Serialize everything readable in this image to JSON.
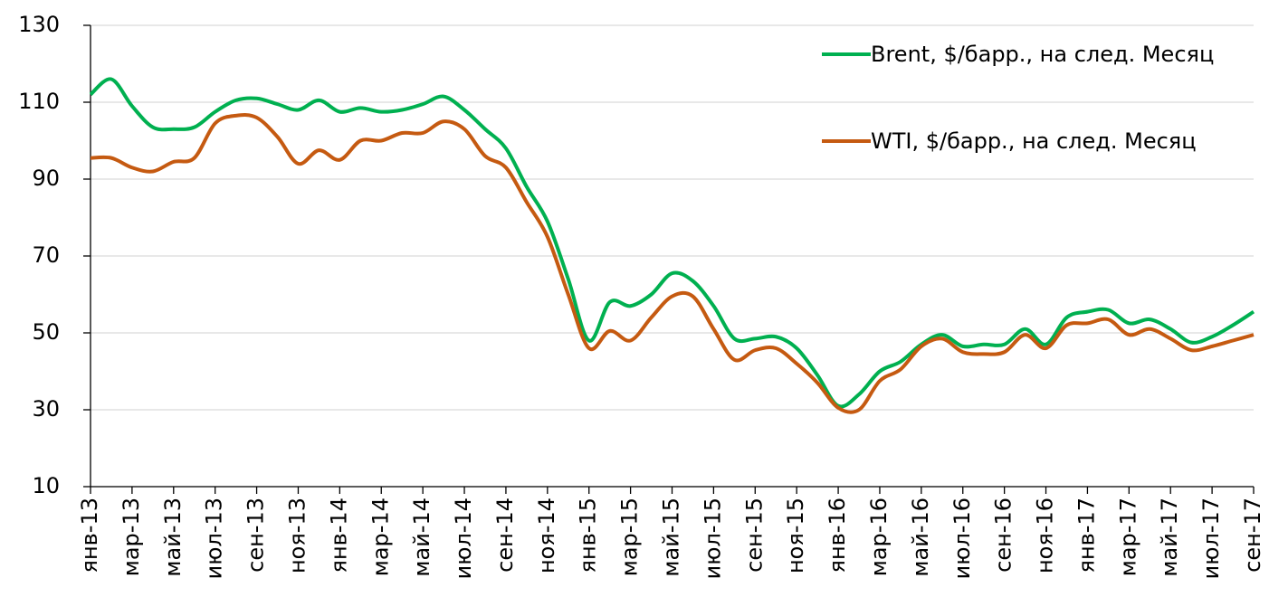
{
  "chart_data": {
    "type": "line",
    "categories": [
      "янв-13",
      null,
      "мар-13",
      null,
      "май-13",
      null,
      "июл-13",
      null,
      "сен-13",
      null,
      "ноя-13",
      null,
      "янв-14",
      null,
      "мар-14",
      null,
      "май-14",
      null,
      "июл-14",
      null,
      "сен-14",
      null,
      "ноя-14",
      null,
      "янв-15",
      null,
      "мар-15",
      null,
      "май-15",
      null,
      "июл-15",
      null,
      "сен-15",
      null,
      "ноя-15",
      null,
      "янв-16",
      null,
      "мар-16",
      null,
      "май-16",
      null,
      "июл-16",
      null,
      "сен-16",
      null,
      "ноя-16",
      null,
      "янв-17",
      null,
      "мар-17",
      null,
      "май-17",
      null,
      "июл-17",
      null,
      "сен-17"
    ],
    "series": [
      {
        "name": "Brent, $/барр., на след. Месяц",
        "color": "#00b050",
        "values": [
          112,
          116,
          109,
          103.5,
          103,
          103.5,
          107.5,
          110.5,
          111,
          109.5,
          108,
          110.5,
          107.5,
          108.5,
          107.5,
          108,
          109.5,
          111.5,
          108,
          103,
          98,
          88,
          79,
          64,
          48,
          58,
          57,
          60,
          65.5,
          63.5,
          57,
          48.5,
          48.5,
          49,
          46,
          39,
          31,
          34,
          40,
          42.5,
          47,
          49.5,
          46.5,
          47,
          47,
          51,
          47,
          54,
          55.5,
          56,
          52.5,
          53.5,
          51,
          47.5,
          49,
          52,
          55.5
        ]
      },
      {
        "name": "WTI, $/барр., на след. Месяц",
        "color": "#c55a11",
        "values": [
          95.5,
          95.5,
          93,
          92,
          94.5,
          95.5,
          104.5,
          106.5,
          106,
          101,
          94,
          97.5,
          95,
          100,
          100,
          102,
          102,
          105,
          103,
          96,
          93,
          84,
          75,
          60,
          46,
          50.5,
          48,
          54,
          59.5,
          59.5,
          51,
          43,
          45.5,
          46,
          42,
          37,
          30.5,
          30,
          37.5,
          40.5,
          46.5,
          48.5,
          45,
          44.5,
          45,
          49.5,
          46,
          52,
          52.5,
          53.5,
          49.5,
          51,
          48.5,
          45.5,
          46.5,
          48,
          49.5
        ]
      }
    ],
    "ylim": [
      10,
      130
    ],
    "yticks": [
      10,
      30,
      50,
      70,
      90,
      110,
      130
    ],
    "grid": true,
    "legend": "upper right"
  }
}
